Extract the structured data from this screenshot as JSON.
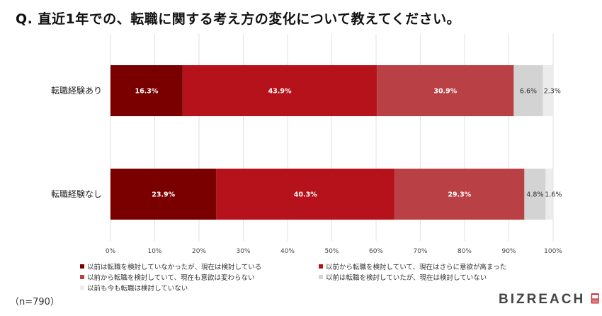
{
  "title": "Q. 直近1年での、転職に関する考え方の変化について教えてください。",
  "sample": "（n=790）",
  "logo": {
    "text": "BIZREACH"
  },
  "chart_data": {
    "type": "bar",
    "orientation": "horizontal",
    "stacked": true,
    "percent_stacked": true,
    "categories": [
      "転職経験あり",
      "転職経験なし"
    ],
    "series": [
      {
        "name": "以前は転職を検討していなかったが、現在は検討している",
        "color": "#7a0000",
        "values": [
          16.3,
          23.9
        ]
      },
      {
        "name": "以前から転職を検討していて、現在はさらに意欲が高まった",
        "color": "#b5121b",
        "values": [
          43.9,
          40.3
        ]
      },
      {
        "name": "以前から転職を検討していて、現在も意欲は変わらない",
        "color": "#b94044",
        "values": [
          30.9,
          29.3
        ]
      },
      {
        "name": "以前は転職を検討していたが、現在は検討していない",
        "color": "#d3d3d3",
        "values": [
          6.6,
          4.8
        ]
      },
      {
        "name": "以前も今も転職は検討していない",
        "color": "#ececec",
        "values": [
          2.3,
          1.6
        ]
      }
    ],
    "data_labels": [
      [
        "16.3%",
        "43.9%",
        "30.9%",
        "6.6%",
        "2.3%"
      ],
      [
        "23.9%",
        "40.3%",
        "29.3%",
        "4.8%",
        "1.6%"
      ]
    ],
    "xlim": [
      0,
      100
    ],
    "x_ticks": [
      "0%",
      "10%",
      "20%",
      "30%",
      "40%",
      "50%",
      "60%",
      "70%",
      "80%",
      "90%",
      "100%"
    ],
    "grid": true,
    "legend_position": "bottom"
  }
}
